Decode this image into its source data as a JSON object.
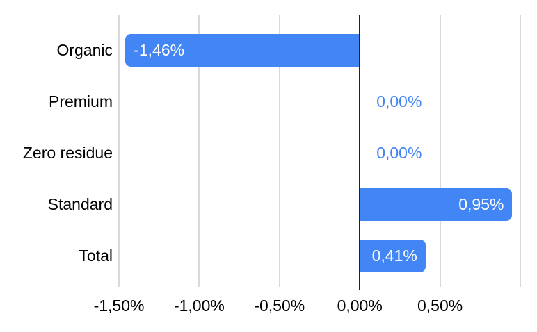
{
  "chart_data": {
    "type": "bar",
    "orientation": "horizontal",
    "title": "",
    "unit": "%",
    "decimal_separator": ",",
    "categories": [
      "Organic",
      "Premium",
      "Zero residue",
      "Standard",
      "Total"
    ],
    "values": [
      -1.46,
      0,
      0,
      0.95,
      0.41
    ],
    "value_labels": [
      "-1,46%",
      "0,00%",
      "0,00%",
      "0,95%",
      "0,41%"
    ],
    "xlabel": "",
    "ylabel": "",
    "xlim": [
      -1.5,
      1.0
    ],
    "x_ticks": [
      -1.5,
      -1.0,
      -0.5,
      0,
      0.5,
      1.0
    ],
    "x_tick_labels": [
      "-1,50%",
      "-1,00%",
      "-0,50%",
      "0,00%",
      "0,50%",
      ""
    ],
    "grid": true,
    "legend": "none",
    "colors": {
      "bar": "#4285f4",
      "bar_label": "#ffffff",
      "zero_value_label": "#4285f4",
      "gridline": "#d9d9d9",
      "zero_line": "#212121",
      "axis_text": "#000000",
      "background": "#ffffff"
    }
  }
}
